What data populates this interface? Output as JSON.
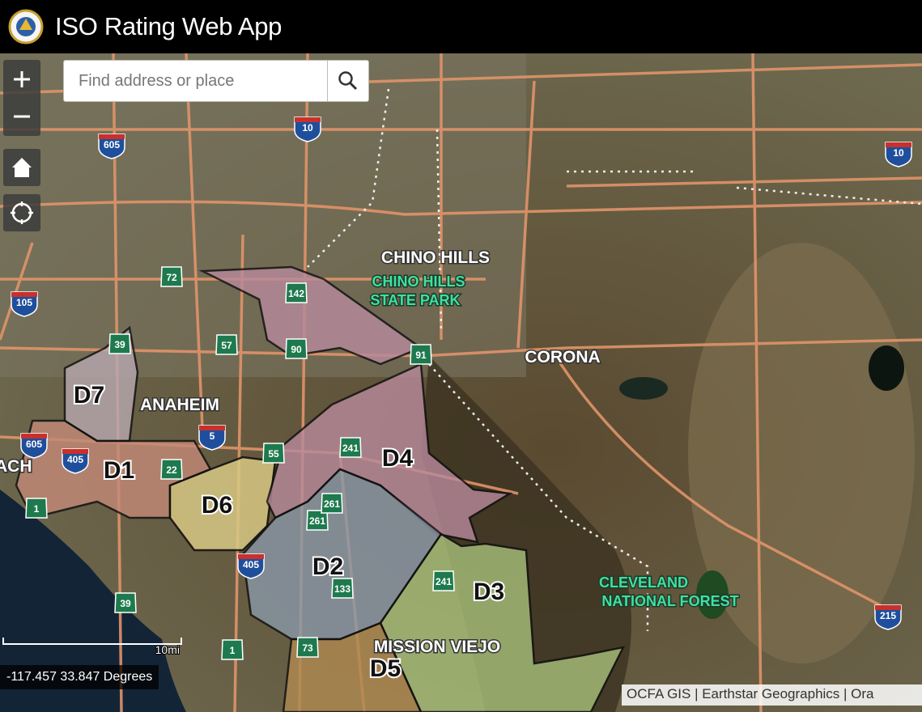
{
  "header": {
    "title": "ISO Rating Web App"
  },
  "search": {
    "placeholder": "Find address or place"
  },
  "map": {
    "place_labels": [
      "CHINO HILLS",
      "CORONA",
      "ANAHEIM",
      "MISSION VIEJO",
      "ACH"
    ],
    "park_labels": [
      "CHINO HILLS",
      "STATE PARK",
      "CLEVELAND",
      "NATIONAL FOREST"
    ],
    "districts": [
      "D1",
      "D2",
      "D3",
      "D4",
      "D5",
      "D6",
      "D7"
    ],
    "shields": [
      "605",
      "10",
      "10",
      "105",
      "5",
      "405",
      "605",
      "405",
      "215",
      "72",
      "57",
      "142",
      "90",
      "91",
      "39",
      "55",
      "22",
      "241",
      "261",
      "261",
      "133",
      "241",
      "73",
      "1",
      "39",
      "1"
    ]
  },
  "scale": {
    "label": "10mi"
  },
  "coordinates": "-117.457 33.847 Degrees",
  "attribution": "OCFA GIS | Earthstar Geographics | Ora"
}
